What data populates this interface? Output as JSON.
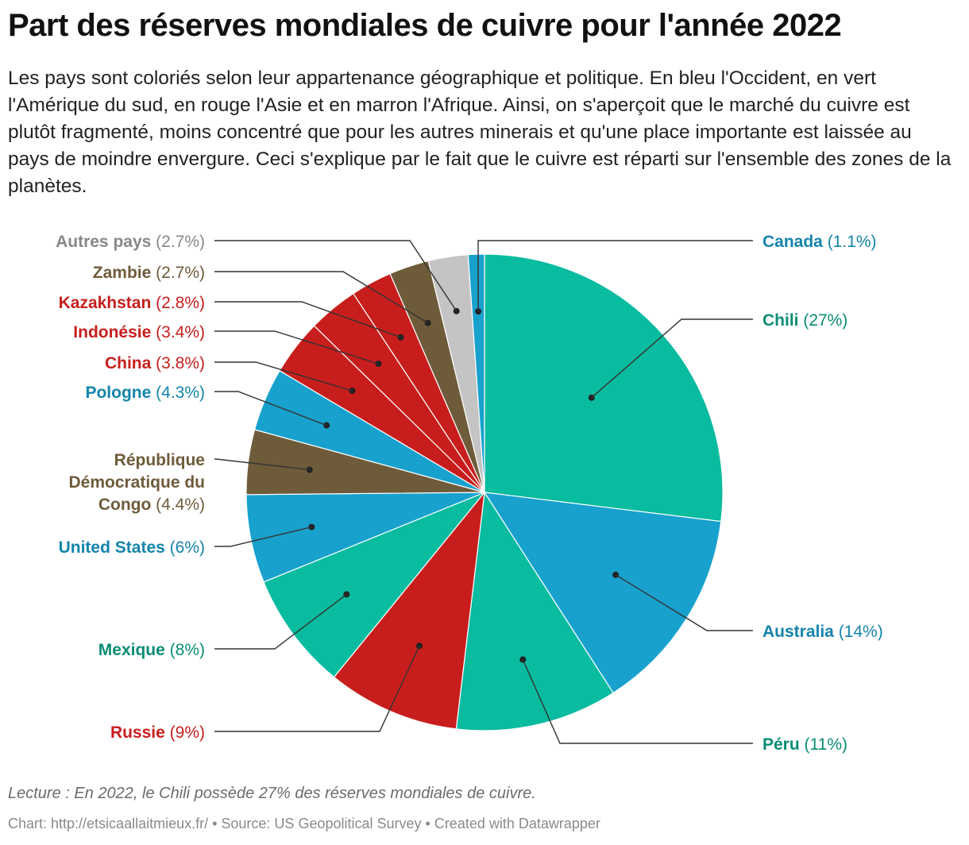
{
  "title": "Part des réserves mondiales de cuivre pour l'année 2022",
  "description": "Les pays sont coloriés selon leur appartenance géographique et politique. En bleu l'Occident, en vert l'Amérique du sud, en rouge l'Asie et en marron l'Afrique. Ainsi, on s'aperçoit que le marché du cuivre est plutôt fragmenté, moins concentré que pour les autres minerais et qu'une place importante est laissée au pays de moindre envergure. Ceci s'explique par le fait que le cuivre est réparti sur l'ensemble des zones de la planètes.",
  "note": "Lecture : En 2022, le Chili possède 27% des réserves mondiales de cuivre.",
  "footer": "Chart: http://etsicaallaitmieux.fr/ • Source: US Geopolitical Survey • Created with Datawrapper",
  "colors": {
    "occident": "#18a1cd",
    "amerique_sud": "#09bb9f",
    "asie": "#c71e1d",
    "afrique": "#6e5b3a",
    "autres": "#c4c4c4"
  },
  "chart_data": {
    "type": "pie",
    "slices": [
      {
        "name": "Chili",
        "label": "(27%)",
        "value": 27,
        "color": "#09bb9f",
        "text_color": "#0a8d74"
      },
      {
        "name": "Australia",
        "label": "(14%)",
        "value": 14,
        "color": "#18a1cd",
        "text_color": "#1484ab"
      },
      {
        "name": "Péru",
        "label": "(11%)",
        "value": 11,
        "color": "#09bb9f",
        "text_color": "#0a8d74"
      },
      {
        "name": "Russie",
        "label": "(9%)",
        "value": 9,
        "color": "#c71e1d",
        "text_color": "#c71e1d"
      },
      {
        "name": "Mexique",
        "label": "(8%)",
        "value": 8,
        "color": "#09bb9f",
        "text_color": "#0a8d74"
      },
      {
        "name": "United States",
        "label": "(6%)",
        "value": 6,
        "color": "#18a1cd",
        "text_color": "#1484ab"
      },
      {
        "name": "République Démocratique du Congo",
        "label": "(4.4%)",
        "value": 4.4,
        "color": "#6e5b3a",
        "text_color": "#6e5b3a"
      },
      {
        "name": "Pologne",
        "label": "(4.3%)",
        "value": 4.3,
        "color": "#18a1cd",
        "text_color": "#1484ab"
      },
      {
        "name": "China",
        "label": "(3.8%)",
        "value": 3.8,
        "color": "#c71e1d",
        "text_color": "#c71e1d"
      },
      {
        "name": "Indonésie",
        "label": "(3.4%)",
        "value": 3.4,
        "color": "#c71e1d",
        "text_color": "#c71e1d"
      },
      {
        "name": "Kazakhstan",
        "label": "(2.8%)",
        "value": 2.8,
        "color": "#c71e1d",
        "text_color": "#c71e1d"
      },
      {
        "name": "Zambie",
        "label": "(2.7%)",
        "value": 2.7,
        "color": "#6e5b3a",
        "text_color": "#6e5b3a"
      },
      {
        "name": "Autres pays",
        "label": "(2.7%)",
        "value": 2.7,
        "color": "#c4c4c4",
        "text_color": "#888888"
      },
      {
        "name": "Canada",
        "label": "(1.1%)",
        "value": 1.1,
        "color": "#18a1cd",
        "text_color": "#1484ab"
      }
    ]
  }
}
